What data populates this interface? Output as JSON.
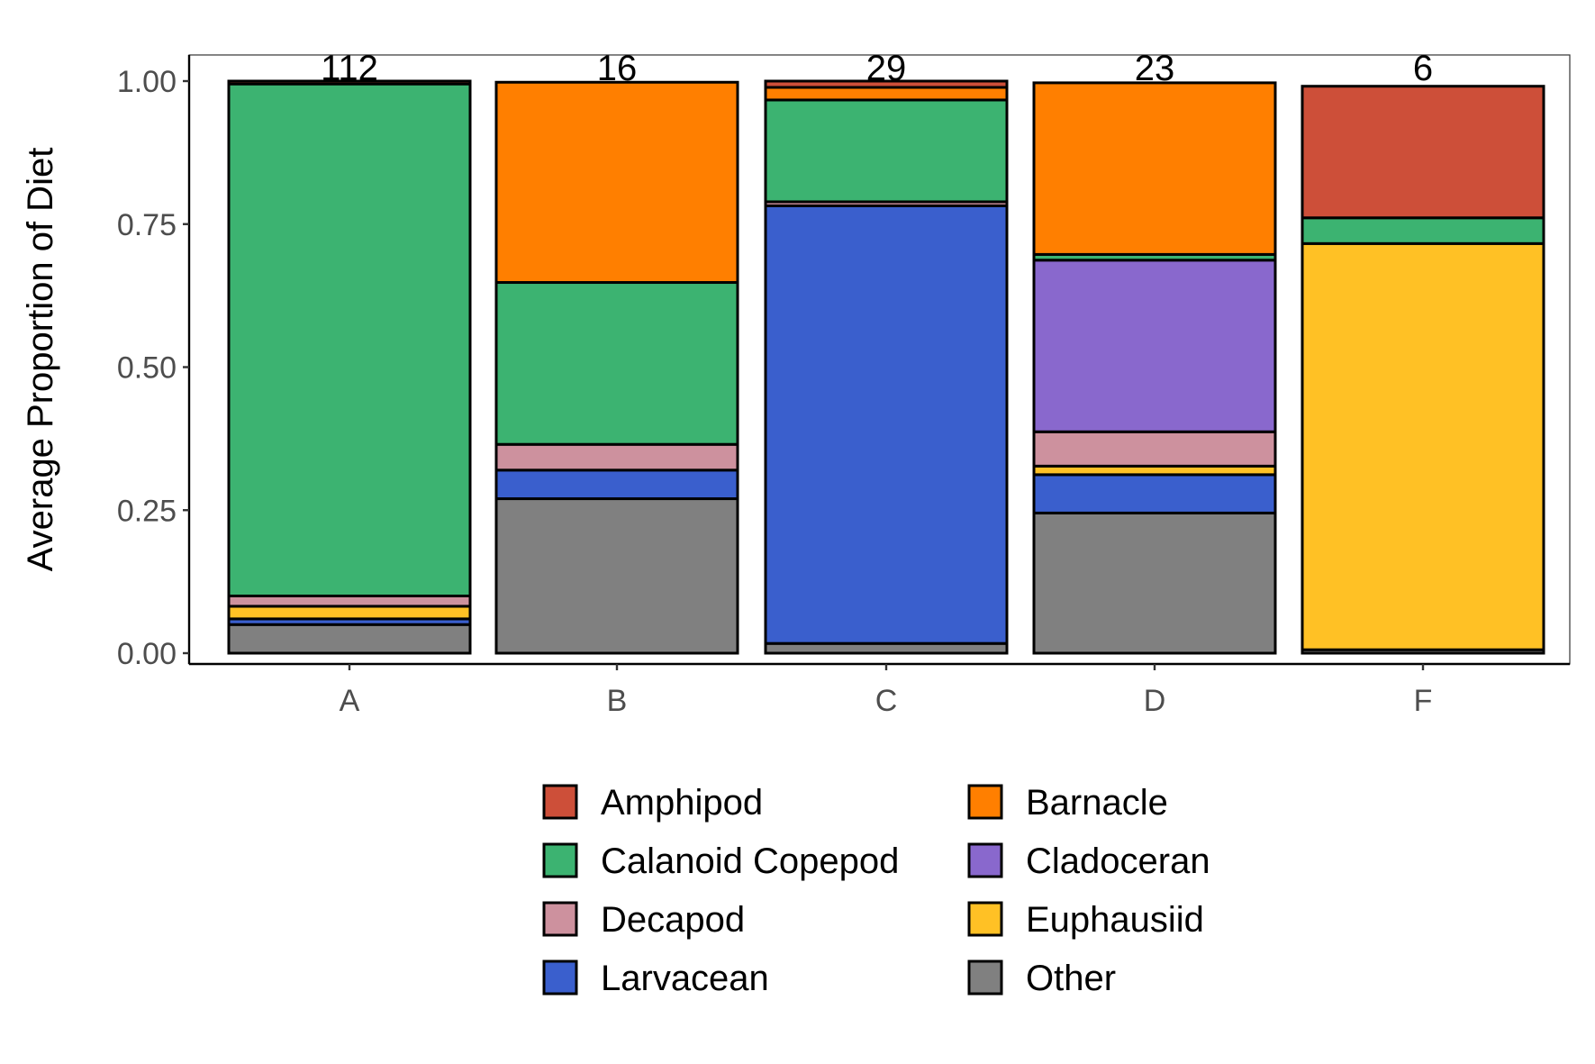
{
  "chart_data": {
    "type": "bar",
    "stacked": true,
    "title": "",
    "xlabel": "",
    "ylabel": "Average Proportion of Diet",
    "ylim": [
      0,
      1.0
    ],
    "yticks": [
      "0.00",
      "0.25",
      "0.50",
      "0.75",
      "1.00"
    ],
    "categories": [
      "A",
      "B",
      "C",
      "D",
      "F"
    ],
    "counts": [
      "112",
      "16",
      "29",
      "23",
      "6"
    ],
    "grid": false,
    "legend_position": "bottom",
    "series": [
      {
        "name": "Other",
        "color": "#808080",
        "values": [
          0.05,
          0.27,
          0.017,
          0.245,
          0.006
        ]
      },
      {
        "name": "Larvacean",
        "color": "#3A5FCD",
        "values": [
          0.01,
          0.05,
          0.765,
          0.067,
          0.0
        ]
      },
      {
        "name": "Euphausiid",
        "color": "#FFC125",
        "values": [
          0.022,
          0.0,
          0.0,
          0.015,
          0.71
        ]
      },
      {
        "name": "Decapod",
        "color": "#CD919E",
        "values": [
          0.018,
          0.045,
          0.007,
          0.06,
          0.0
        ]
      },
      {
        "name": "Cladoceran",
        "color": "#8968CD",
        "values": [
          0.0,
          0.0,
          0.0,
          0.3,
          0.0
        ]
      },
      {
        "name": "Calanoid Copepod",
        "color": "#3CB371",
        "values": [
          0.895,
          0.283,
          0.178,
          0.01,
          0.045
        ]
      },
      {
        "name": "Barnacle",
        "color": "#FF7F00",
        "values": [
          0.0,
          0.35,
          0.022,
          0.3,
          0.0
        ]
      },
      {
        "name": "Amphipod",
        "color": "#CD4F39",
        "values": [
          0.005,
          0.0,
          0.011,
          0.0,
          0.23
        ]
      }
    ],
    "legend": [
      "Amphipod",
      "Barnacle",
      "Calanoid Copepod",
      "Cladoceran",
      "Decapod",
      "Euphausiid",
      "Larvacean",
      "Other"
    ]
  }
}
